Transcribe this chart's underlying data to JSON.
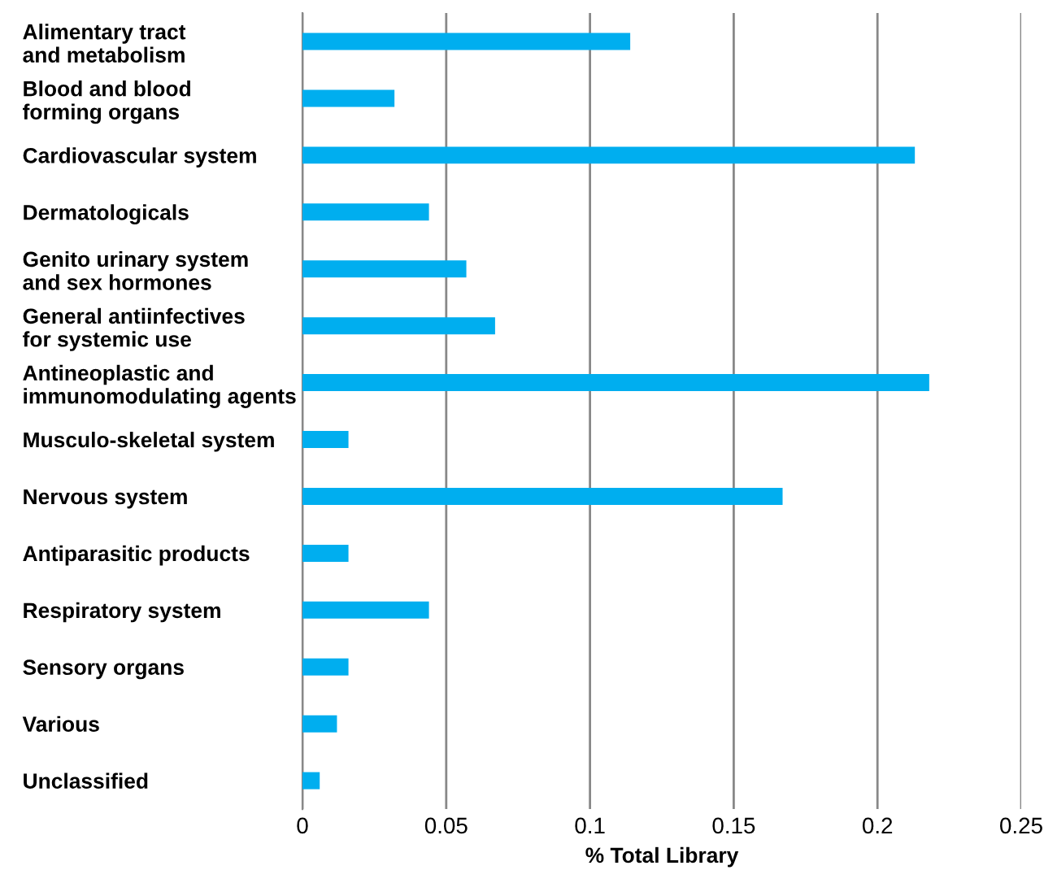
{
  "chart_data": {
    "type": "bar",
    "orientation": "horizontal",
    "xlabel": "% Total Library",
    "categories": [
      "Alimentary tract\nand metabolism",
      "Blood and blood\nforming organs",
      "Cardiovascular system",
      "Dermatologicals",
      "Genito urinary system\nand sex hormones",
      "General antiinfectives\nfor systemic use",
      "Antineoplastic and\nimmunomodulating agents",
      "Musculo-skeletal system",
      "Nervous system",
      "Antiparasitic products",
      "Respiratory system",
      "Sensory organs",
      "Various",
      "Unclassified"
    ],
    "values": [
      0.114,
      0.032,
      0.213,
      0.044,
      0.057,
      0.067,
      0.218,
      0.016,
      0.167,
      0.016,
      0.044,
      0.016,
      0.012,
      0.006
    ],
    "color": "#00aeef",
    "xlim": [
      0,
      0.25
    ],
    "xticks": [
      0,
      0.05,
      0.1,
      0.15,
      0.2,
      0.25
    ],
    "grid": "x"
  }
}
